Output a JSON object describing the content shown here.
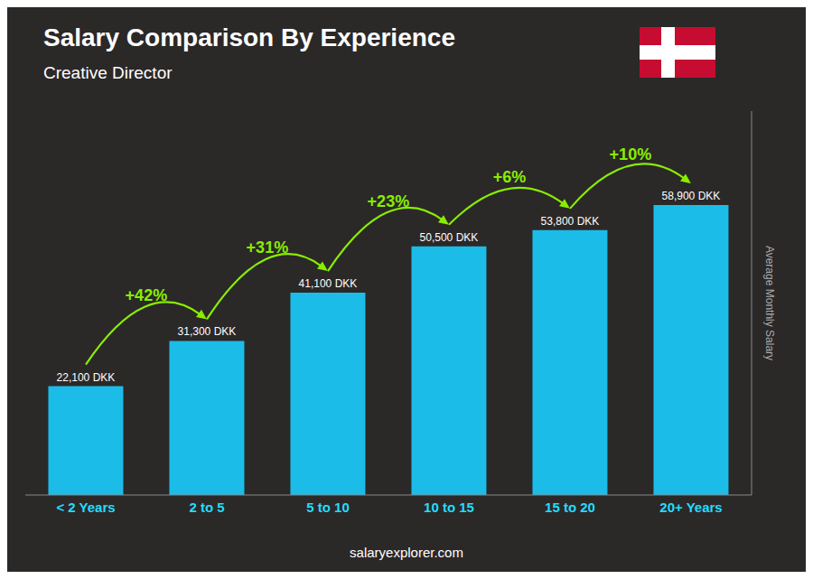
{
  "chart_data": {
    "type": "bar",
    "title": "Salary Comparison By Experience",
    "subtitle": "Creative Director",
    "y_label": "Average Monthly Salary",
    "footer": "salaryexplorer.com",
    "categories": [
      "< 2 Years",
      "2 to 5",
      "5 to 10",
      "10 to 15",
      "15 to 20",
      "20+ Years"
    ],
    "values": [
      22100,
      31300,
      41100,
      50500,
      53800,
      58900
    ],
    "value_labels": [
      "22,100 DKK",
      "31,300 DKK",
      "41,100 DKK",
      "50,500 DKK",
      "53,800 DKK",
      "58,900 DKK"
    ],
    "data_labels": true,
    "annotations": [
      {
        "text": "+42%",
        "color": "#88ee00"
      },
      {
        "text": "+31%",
        "color": "#88ee00"
      },
      {
        "text": "+23%",
        "color": "#88ee00"
      },
      {
        "text": "+6%",
        "color": "#88ee00"
      },
      {
        "text": "+10%",
        "color": "#88ee00"
      }
    ],
    "color": "#1bbde8",
    "ylim": [
      0,
      78000
    ],
    "tick_labels": "x",
    "grid": false
  }
}
